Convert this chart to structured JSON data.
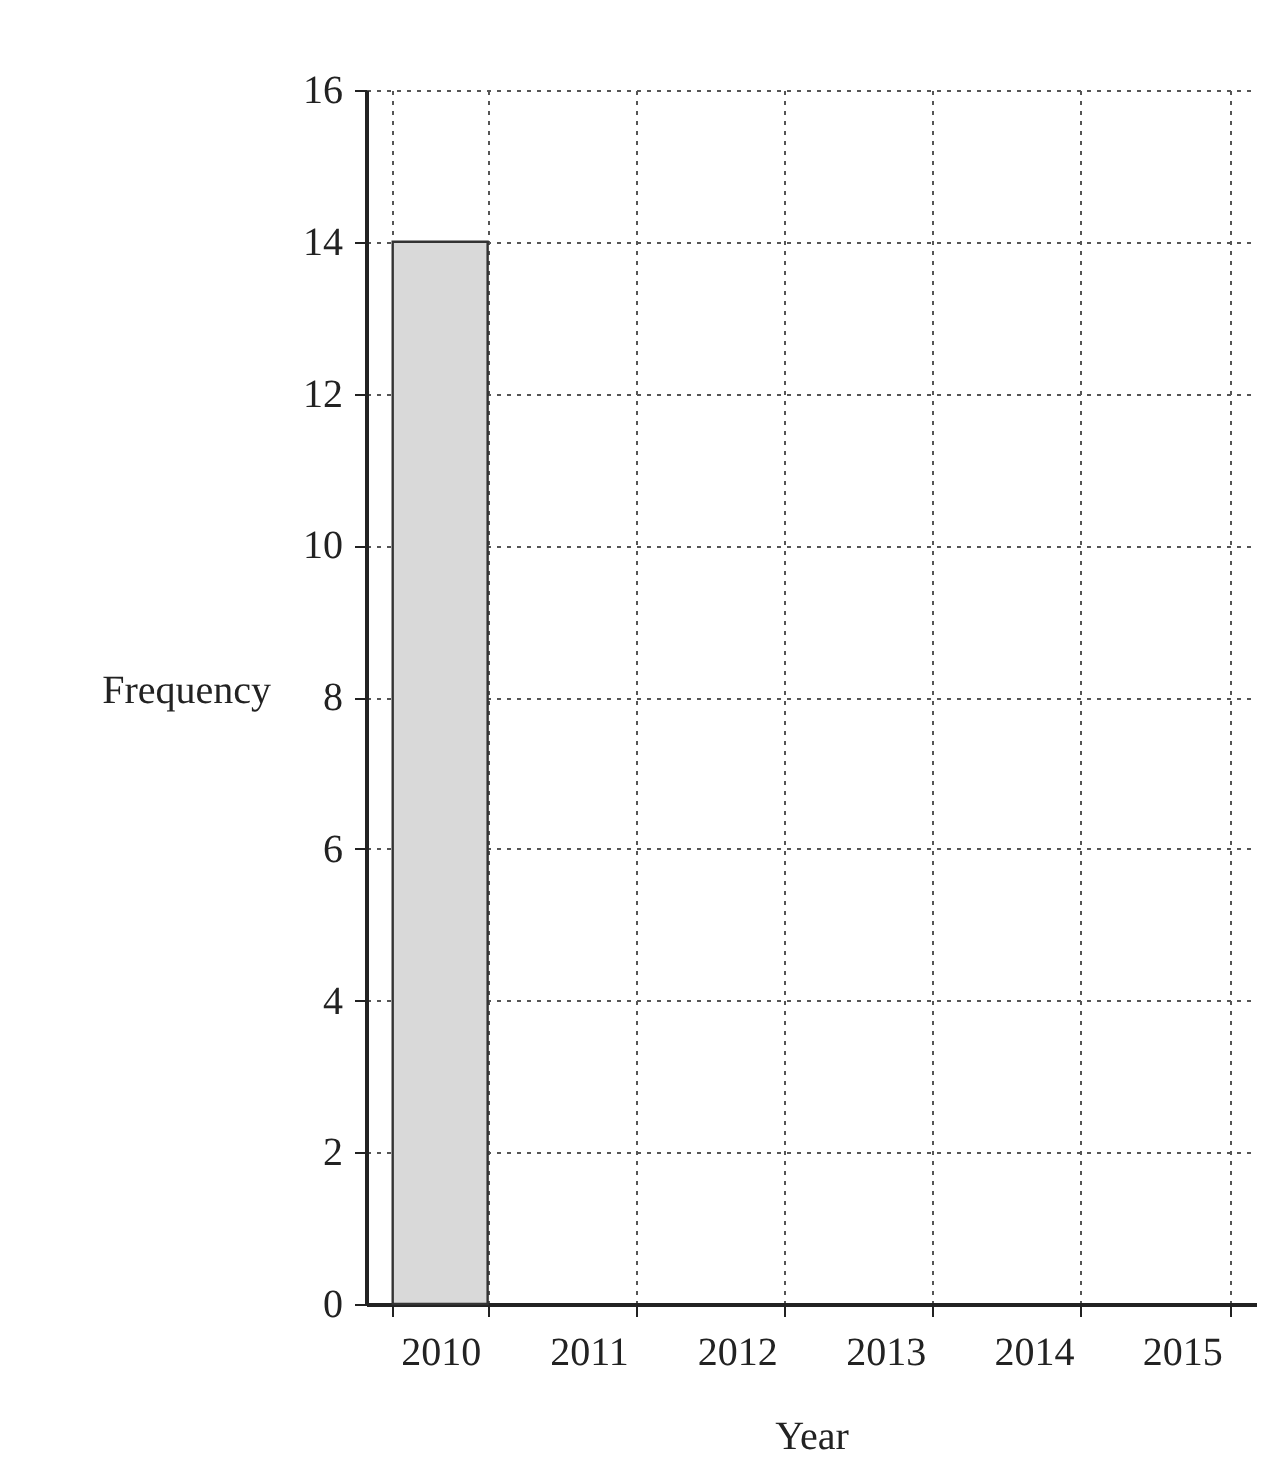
{
  "chart_data": {
    "type": "bar",
    "xlabel": "Year",
    "ylabel": "Frequency",
    "categories": [
      "2010",
      "2011",
      "2012",
      "2013",
      "2014",
      "2015"
    ],
    "values": [
      14,
      null,
      null,
      null,
      null,
      null
    ],
    "color": "#d9d9d9",
    "ylim": [
      0,
      16
    ],
    "yticks": [
      0,
      2,
      4,
      6,
      8,
      10,
      12,
      14,
      16
    ],
    "grid": true
  }
}
